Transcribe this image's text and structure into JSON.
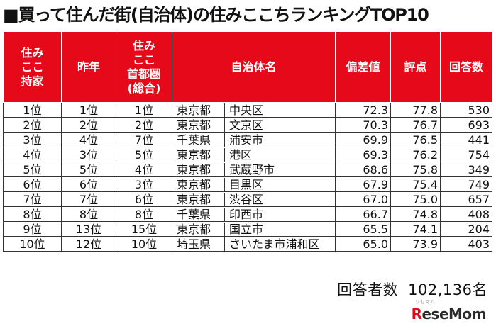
{
  "title": "■買って住んだ街(自治体)の住みここちランキングTOP10",
  "headers": {
    "h1": [
      "住み",
      "ここ",
      "持家"
    ],
    "h2": "昨年",
    "h3": [
      "住み",
      "ここ",
      "首都圏",
      "(総合)"
    ],
    "h4": "自治体名",
    "h5": "偏差値",
    "h6": "評点",
    "h7": "回答数"
  },
  "rows": [
    {
      "rank": "1位",
      "prev": "1位",
      "metro": "1位",
      "pref": "東京都",
      "city": "中央区",
      "score": "72.3",
      "rating": "77.8",
      "count": "530"
    },
    {
      "rank": "2位",
      "prev": "2位",
      "metro": "2位",
      "pref": "東京都",
      "city": "文京区",
      "score": "70.3",
      "rating": "76.7",
      "count": "693"
    },
    {
      "rank": "3位",
      "prev": "4位",
      "metro": "7位",
      "pref": "千葉県",
      "city": "浦安市",
      "score": "69.9",
      "rating": "76.5",
      "count": "441"
    },
    {
      "rank": "4位",
      "prev": "3位",
      "metro": "5位",
      "pref": "東京都",
      "city": "港区",
      "score": "69.3",
      "rating": "76.2",
      "count": "754"
    },
    {
      "rank": "5位",
      "prev": "5位",
      "metro": "4位",
      "pref": "東京都",
      "city": "武蔵野市",
      "score": "68.6",
      "rating": "75.8",
      "count": "349"
    },
    {
      "rank": "6位",
      "prev": "6位",
      "metro": "3位",
      "pref": "東京都",
      "city": "目黒区",
      "score": "67.9",
      "rating": "75.4",
      "count": "749"
    },
    {
      "rank": "7位",
      "prev": "7位",
      "metro": "6位",
      "pref": "東京都",
      "city": "渋谷区",
      "score": "67.0",
      "rating": "75.0",
      "count": "657"
    },
    {
      "rank": "8位",
      "prev": "8位",
      "metro": "8位",
      "pref": "千葉県",
      "city": "印西市",
      "score": "66.7",
      "rating": "74.8",
      "count": "408"
    },
    {
      "rank": "9位",
      "prev": "13位",
      "metro": "15位",
      "pref": "東京都",
      "city": "国立市",
      "score": "65.5",
      "rating": "74.1",
      "count": "204"
    },
    {
      "rank": "10位",
      "prev": "12位",
      "metro": "10位",
      "pref": "埼玉県",
      "city": "さいたま市浦和区",
      "score": "65.0",
      "rating": "73.9",
      "count": "403"
    }
  ],
  "footer": {
    "label": "回答者数",
    "value": "102,136名"
  },
  "logo": {
    "mark": "R",
    "text": "eseMom"
  },
  "watermark": "リセマム",
  "colors": {
    "header_bg": "#e5091a",
    "header_text": "#ffffff"
  }
}
